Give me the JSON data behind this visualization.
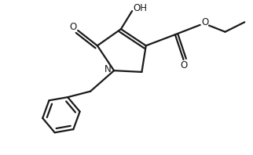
{
  "bg_color": "#ffffff",
  "line_color": "#1a1a1a",
  "line_width": 1.6,
  "figsize": [
    3.22,
    1.98
  ],
  "dpi": 100,
  "font_size": 8.5,
  "xlim": [
    0,
    9
  ],
  "ylim": [
    0,
    5.6
  ]
}
